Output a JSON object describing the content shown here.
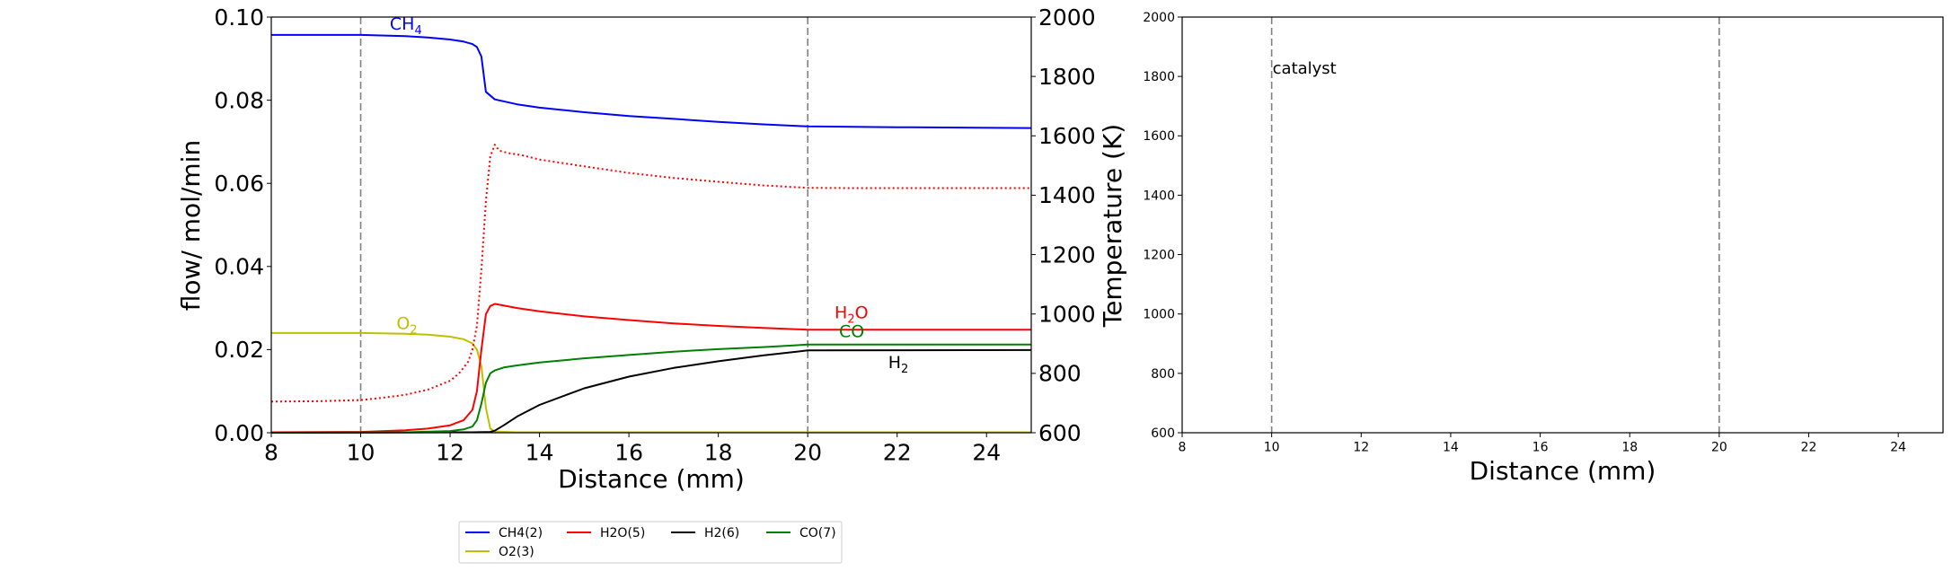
{
  "chart_data": [
    {
      "type": "line",
      "xlabel": "Distance (mm)",
      "ylabel": "flow/ mol/min",
      "y2label": "Temperature (K)",
      "xlim": [
        8,
        25
      ],
      "ylim": [
        0,
        0.1
      ],
      "y2lim": [
        600,
        2000
      ],
      "xticks": [
        "8",
        "10",
        "12",
        "14",
        "16",
        "18",
        "20",
        "22",
        "24"
      ],
      "yticks": [
        "0.00",
        "0.02",
        "0.04",
        "0.06",
        "0.08",
        "0.10"
      ],
      "y2ticks": [
        "600",
        "800",
        "1000",
        "1200",
        "1400",
        "1600",
        "1800",
        "2000"
      ],
      "vlines": [
        10,
        20
      ],
      "colors": {
        "CH4": "#0000ff",
        "O2": "#bfbf00",
        "H2O": "#ff0000",
        "H2": "#000000",
        "CO": "#008000",
        "T": "#ff0000",
        "vline": "#808080"
      },
      "series": [
        {
          "name": "CH4(2)",
          "color": "#0000ff",
          "x": [
            8,
            10,
            11,
            11.5,
            12,
            12.3,
            12.5,
            12.6,
            12.7,
            12.8,
            13,
            13.5,
            14,
            15,
            16,
            17,
            18,
            19,
            20,
            22,
            25
          ],
          "y": [
            0.0957,
            0.0957,
            0.0954,
            0.0951,
            0.0946,
            0.0941,
            0.0935,
            0.0928,
            0.0905,
            0.082,
            0.0802,
            0.079,
            0.0782,
            0.0771,
            0.0762,
            0.0755,
            0.0748,
            0.0742,
            0.0737,
            0.0735,
            0.0733
          ]
        },
        {
          "name": "O2(3)",
          "color": "#bfbf00",
          "x": [
            8,
            10,
            11,
            11.5,
            12,
            12.3,
            12.5,
            12.6,
            12.7,
            12.8,
            12.9,
            13,
            13.5,
            25
          ],
          "y": [
            0.024,
            0.024,
            0.0238,
            0.0236,
            0.0231,
            0.0225,
            0.0215,
            0.02,
            0.016,
            0.006,
            0.001,
            0.0003,
            0.0001,
            0.0001
          ]
        },
        {
          "name": "H2O(5)",
          "color": "#ff0000",
          "x": [
            8,
            10,
            11,
            11.5,
            12,
            12.3,
            12.5,
            12.6,
            12.7,
            12.8,
            12.9,
            13,
            13.1,
            13.5,
            14,
            15,
            16,
            17,
            18,
            19,
            20,
            25
          ],
          "y": [
            0.0001,
            0.0002,
            0.0006,
            0.001,
            0.0018,
            0.003,
            0.0055,
            0.01,
            0.02,
            0.0285,
            0.0305,
            0.031,
            0.0308,
            0.03,
            0.0292,
            0.028,
            0.0271,
            0.0263,
            0.0257,
            0.0252,
            0.0248,
            0.0248
          ]
        },
        {
          "name": "H2(6)",
          "color": "#000000",
          "x": [
            8,
            12.5,
            12.9,
            13,
            13.2,
            13.5,
            14,
            15,
            16,
            17,
            18,
            19,
            20,
            25
          ],
          "y": [
            0,
            0.0001,
            0.0002,
            0.0005,
            0.0018,
            0.0039,
            0.0067,
            0.0107,
            0.0135,
            0.0156,
            0.0172,
            0.0186,
            0.0198,
            0.0199
          ]
        },
        {
          "name": "CO(7)",
          "color": "#008000",
          "x": [
            8,
            11,
            12,
            12.3,
            12.5,
            12.6,
            12.7,
            12.8,
            12.9,
            13,
            13.2,
            13.5,
            14,
            15,
            16,
            17,
            18,
            19,
            20,
            25
          ],
          "y": [
            0,
            0.0001,
            0.0004,
            0.0008,
            0.0015,
            0.003,
            0.007,
            0.012,
            0.0143,
            0.015,
            0.0157,
            0.0162,
            0.0169,
            0.0179,
            0.0187,
            0.0195,
            0.0201,
            0.0206,
            0.0212,
            0.0212
          ]
        },
        {
          "name": "",
          "axis": "y2",
          "dashed": true,
          "color": "#ff0000",
          "x": [
            8,
            9,
            10,
            10.5,
            11,
            11.5,
            12,
            12.2,
            12.4,
            12.5,
            12.6,
            12.7,
            12.8,
            12.9,
            13,
            13.1,
            13.3,
            13.6,
            14,
            15,
            16,
            17,
            18,
            19,
            20,
            21,
            22,
            25
          ],
          "y": [
            705,
            706,
            710,
            718,
            728,
            745,
            775,
            800,
            838,
            880,
            960,
            1150,
            1380,
            1530,
            1570,
            1550,
            1542,
            1535,
            1520,
            1497,
            1475,
            1458,
            1445,
            1433,
            1425,
            1424,
            1424,
            1424
          ]
        }
      ],
      "annotations": [
        {
          "base": "CH",
          "sub": "4",
          "tail": "",
          "x": 10.65,
          "y": 0.097,
          "color": "#0000ff"
        },
        {
          "base": "O",
          "sub": "2",
          "tail": "",
          "x": 10.8,
          "y": 0.025,
          "color": "#bfbf00"
        },
        {
          "base": "H",
          "sub": "2",
          "tail": "O",
          "x": 20.6,
          "y": 0.0275,
          "color": "#ff0000"
        },
        {
          "base": "CO",
          "sub": "",
          "tail": "",
          "x": 20.7,
          "y": 0.023,
          "color": "#008000"
        },
        {
          "base": "H",
          "sub": "2",
          "tail": "",
          "x": 21.8,
          "y": 0.0155,
          "color": "#000000"
        }
      ],
      "legend": {
        "placement": "below",
        "entries": [
          "CH4(2)",
          "H2O(5)",
          "H2(6)",
          "CO(7)",
          "O2(3)"
        ]
      }
    },
    {
      "type": "line",
      "xlabel": "Distance (mm)",
      "ylabel": "",
      "xlim": [
        8,
        25
      ],
      "ylim": [
        600,
        2000
      ],
      "xticks": [
        "8",
        "10",
        "12",
        "14",
        "16",
        "18",
        "20",
        "22",
        "24"
      ],
      "yticks": [
        "600",
        "800",
        "1000",
        "1200",
        "1400",
        "1600",
        "1800",
        "2000"
      ],
      "vlines": [
        10,
        20
      ],
      "series": [],
      "annotations": [
        {
          "text": "catalyst",
          "x": 10,
          "y": 1810,
          "color": "#000000"
        }
      ]
    }
  ]
}
